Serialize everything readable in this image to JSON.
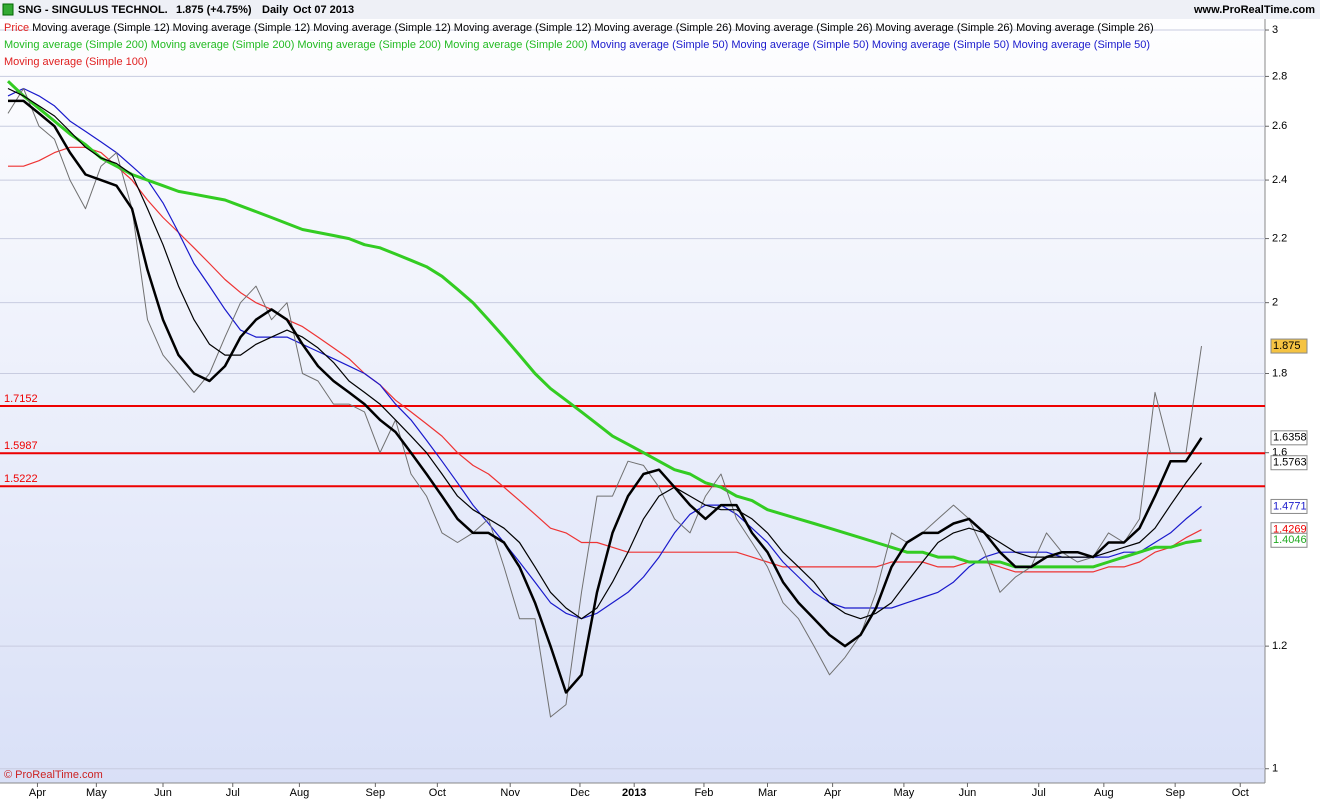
{
  "chart_data": {
    "type": "line",
    "title": "SNG - SINGULUS TECHNOL.",
    "quote": "1.875 (+4.75%)",
    "period": "Daily",
    "date": "Oct 07 2013",
    "site": "www.ProRealTime.com",
    "copyright": "© ProRealTime.com",
    "log_scale": true,
    "grid": true,
    "ylim": [
      0.979,
      3.137
    ],
    "yticks": [
      1,
      1.2,
      1.6,
      1.8,
      2,
      2.2,
      2.4,
      2.6,
      2.8,
      3
    ],
    "x_labels": [
      "Apr",
      "May",
      "Jun",
      "Jul",
      "Aug",
      "Sep",
      "Oct",
      "Nov",
      "Dec",
      "2013",
      "Feb",
      "Mar",
      "Apr",
      "May",
      "Jun",
      "Jul",
      "Aug",
      "Sep",
      "Oct"
    ],
    "legend": [
      {
        "text": "Price",
        "color": "#e02020"
      },
      {
        "text": "Moving average (Simple 12)",
        "color": "#000000"
      },
      {
        "text": "Moving average (Simple 12)",
        "color": "#000000"
      },
      {
        "text": "Moving average (Simple 12)",
        "color": "#000000"
      },
      {
        "text": "Moving average (Simple 12)",
        "color": "#000000"
      },
      {
        "text": "Moving average (Simple 26)",
        "color": "#000000"
      },
      {
        "text": "Moving average (Simple 26)",
        "color": "#000000"
      },
      {
        "text": "Moving average (Simple 26)",
        "color": "#000000"
      },
      {
        "text": "Moving average (Simple 26)",
        "color": "#000000"
      },
      {
        "text": "Moving average (Simple 200)",
        "color": "#22bb22"
      },
      {
        "text": "Moving average (Simple 200)",
        "color": "#22bb22"
      },
      {
        "text": "Moving average (Simple 200)",
        "color": "#22bb22"
      },
      {
        "text": "Moving average (Simple 200)",
        "color": "#22bb22"
      },
      {
        "text": "Moving average (Simple 50)",
        "color": "#1a1acc"
      },
      {
        "text": "Moving average (Simple 50)",
        "color": "#1a1acc"
      },
      {
        "text": "Moving average (Simple 50)",
        "color": "#1a1acc"
      },
      {
        "text": "Moving average (Simple 50)",
        "color": "#1a1acc"
      },
      {
        "text": "Moving average (Simple 100)",
        "color": "#e02020"
      }
    ],
    "levels": [
      1.7152,
      1.5987,
      1.5222
    ],
    "level_color": "#ee0000",
    "series": [
      {
        "name": "Price",
        "color": "#707070",
        "width": 1,
        "tag_bg": "#f5c342",
        "tag_fg": "#000000",
        "values": [
          2.65,
          2.75,
          2.6,
          2.55,
          2.4,
          2.3,
          2.45,
          2.5,
          2.3,
          1.95,
          1.85,
          1.8,
          1.75,
          1.8,
          1.9,
          2.0,
          2.05,
          1.95,
          2.0,
          1.8,
          1.78,
          1.72,
          1.72,
          1.7,
          1.6,
          1.68,
          1.55,
          1.5,
          1.42,
          1.4,
          1.42,
          1.45,
          1.35,
          1.25,
          1.25,
          1.08,
          1.1,
          1.3,
          1.5,
          1.5,
          1.58,
          1.57,
          1.52,
          1.45,
          1.42,
          1.5,
          1.55,
          1.45,
          1.4,
          1.35,
          1.28,
          1.25,
          1.2,
          1.15,
          1.18,
          1.22,
          1.3,
          1.42,
          1.4,
          1.42,
          1.45,
          1.48,
          1.45,
          1.38,
          1.3,
          1.33,
          1.35,
          1.42,
          1.38,
          1.36,
          1.37,
          1.42,
          1.4,
          1.45,
          1.75,
          1.6,
          1.6,
          1.875
        ]
      },
      {
        "name": "Moving average (Simple 12)",
        "color": "#000000",
        "width": 2.5,
        "tag_bg": "#ffffff",
        "tag_fg": "#000000",
        "values": [
          2.7,
          2.7,
          2.65,
          2.6,
          2.5,
          2.42,
          2.4,
          2.38,
          2.3,
          2.1,
          1.95,
          1.85,
          1.8,
          1.78,
          1.82,
          1.9,
          1.95,
          1.98,
          1.95,
          1.88,
          1.82,
          1.78,
          1.75,
          1.72,
          1.68,
          1.65,
          1.6,
          1.55,
          1.5,
          1.45,
          1.42,
          1.42,
          1.4,
          1.35,
          1.28,
          1.2,
          1.12,
          1.15,
          1.3,
          1.42,
          1.5,
          1.55,
          1.56,
          1.52,
          1.48,
          1.45,
          1.48,
          1.48,
          1.42,
          1.38,
          1.32,
          1.28,
          1.25,
          1.22,
          1.2,
          1.22,
          1.27,
          1.35,
          1.4,
          1.42,
          1.42,
          1.44,
          1.45,
          1.42,
          1.38,
          1.35,
          1.35,
          1.37,
          1.38,
          1.38,
          1.37,
          1.4,
          1.4,
          1.43,
          1.5,
          1.58,
          1.58,
          1.6358
        ]
      },
      {
        "name": "Moving average (Simple 26)",
        "color": "#000000",
        "width": 1.2,
        "tag_bg": "#ffffff",
        "tag_fg": "#000000",
        "values": [
          2.75,
          2.72,
          2.68,
          2.64,
          2.58,
          2.52,
          2.48,
          2.46,
          2.42,
          2.3,
          2.18,
          2.05,
          1.95,
          1.88,
          1.85,
          1.85,
          1.88,
          1.9,
          1.92,
          1.9,
          1.87,
          1.83,
          1.78,
          1.75,
          1.72,
          1.68,
          1.64,
          1.6,
          1.55,
          1.5,
          1.47,
          1.45,
          1.43,
          1.4,
          1.35,
          1.3,
          1.27,
          1.25,
          1.27,
          1.32,
          1.38,
          1.45,
          1.5,
          1.52,
          1.5,
          1.48,
          1.47,
          1.47,
          1.45,
          1.42,
          1.38,
          1.35,
          1.32,
          1.28,
          1.26,
          1.25,
          1.26,
          1.28,
          1.32,
          1.36,
          1.4,
          1.42,
          1.43,
          1.42,
          1.4,
          1.38,
          1.37,
          1.37,
          1.37,
          1.37,
          1.37,
          1.38,
          1.39,
          1.4,
          1.43,
          1.48,
          1.53,
          1.5763
        ]
      },
      {
        "name": "Moving average (Simple 50)",
        "color": "#1a1acc",
        "width": 1.2,
        "tag_bg": "#ffffff",
        "tag_fg": "#1a1acc",
        "values": [
          2.72,
          2.75,
          2.72,
          2.68,
          2.62,
          2.58,
          2.54,
          2.5,
          2.45,
          2.4,
          2.32,
          2.22,
          2.12,
          2.05,
          1.98,
          1.92,
          1.9,
          1.9,
          1.9,
          1.88,
          1.86,
          1.84,
          1.82,
          1.8,
          1.77,
          1.72,
          1.68,
          1.63,
          1.58,
          1.53,
          1.48,
          1.44,
          1.4,
          1.36,
          1.32,
          1.28,
          1.26,
          1.25,
          1.26,
          1.28,
          1.3,
          1.33,
          1.37,
          1.42,
          1.46,
          1.48,
          1.48,
          1.46,
          1.43,
          1.4,
          1.36,
          1.33,
          1.3,
          1.28,
          1.27,
          1.27,
          1.27,
          1.27,
          1.28,
          1.29,
          1.3,
          1.32,
          1.35,
          1.37,
          1.38,
          1.38,
          1.38,
          1.38,
          1.37,
          1.37,
          1.37,
          1.37,
          1.38,
          1.38,
          1.4,
          1.42,
          1.45,
          1.4771
        ]
      },
      {
        "name": "Moving average (Simple 100)",
        "color": "#ee3333",
        "width": 1.2,
        "tag_bg": "#ffffff",
        "tag_fg": "#ee0000",
        "values": [
          2.45,
          2.45,
          2.47,
          2.5,
          2.52,
          2.52,
          2.5,
          2.45,
          2.4,
          2.33,
          2.27,
          2.22,
          2.17,
          2.12,
          2.07,
          2.03,
          2.0,
          1.98,
          1.95,
          1.93,
          1.9,
          1.87,
          1.84,
          1.8,
          1.77,
          1.73,
          1.7,
          1.67,
          1.64,
          1.6,
          1.57,
          1.55,
          1.52,
          1.49,
          1.46,
          1.43,
          1.42,
          1.4,
          1.4,
          1.39,
          1.38,
          1.38,
          1.38,
          1.38,
          1.38,
          1.38,
          1.38,
          1.38,
          1.37,
          1.36,
          1.35,
          1.35,
          1.35,
          1.35,
          1.35,
          1.35,
          1.35,
          1.36,
          1.36,
          1.36,
          1.35,
          1.35,
          1.36,
          1.36,
          1.35,
          1.34,
          1.34,
          1.34,
          1.34,
          1.34,
          1.34,
          1.35,
          1.35,
          1.36,
          1.38,
          1.39,
          1.41,
          1.4269
        ]
      },
      {
        "name": "Moving average (Simple 200)",
        "color": "#33cc22",
        "width": 3,
        "tag_bg": "#ffffff",
        "tag_fg": "#22aa22",
        "values": [
          2.78,
          2.72,
          2.67,
          2.62,
          2.57,
          2.53,
          2.48,
          2.45,
          2.42,
          2.4,
          2.38,
          2.36,
          2.35,
          2.34,
          2.33,
          2.31,
          2.29,
          2.27,
          2.25,
          2.23,
          2.22,
          2.21,
          2.2,
          2.18,
          2.17,
          2.15,
          2.13,
          2.11,
          2.08,
          2.04,
          2.0,
          1.95,
          1.9,
          1.85,
          1.8,
          1.76,
          1.73,
          1.7,
          1.67,
          1.64,
          1.62,
          1.6,
          1.58,
          1.56,
          1.55,
          1.53,
          1.52,
          1.5,
          1.49,
          1.47,
          1.46,
          1.45,
          1.44,
          1.43,
          1.42,
          1.41,
          1.4,
          1.39,
          1.38,
          1.38,
          1.37,
          1.37,
          1.36,
          1.36,
          1.36,
          1.35,
          1.35,
          1.35,
          1.35,
          1.35,
          1.35,
          1.36,
          1.37,
          1.38,
          1.39,
          1.39,
          1.4,
          1.4046
        ]
      }
    ]
  }
}
